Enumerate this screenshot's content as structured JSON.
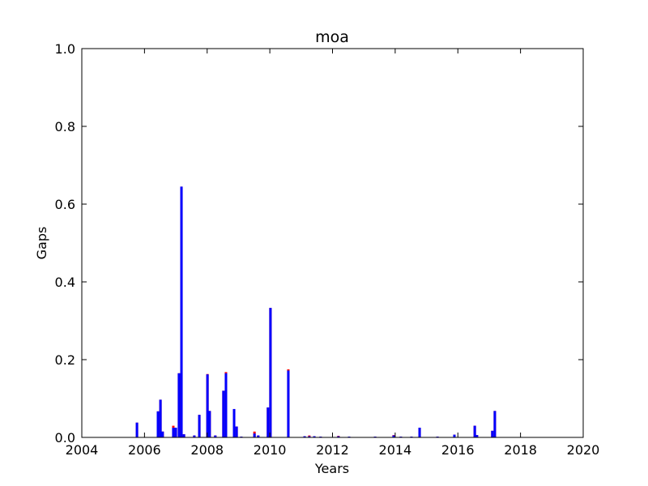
{
  "chart_data": {
    "type": "bar",
    "title": "moa",
    "xlabel": "Years",
    "ylabel": "Gaps",
    "x": [
      2005.76,
      2006.43,
      2006.51,
      2006.58,
      2006.92,
      2007.0,
      2007.1,
      2007.18,
      2007.26,
      2007.59,
      2007.75,
      2008.01,
      2008.08,
      2008.26,
      2008.52,
      2008.6,
      2008.86,
      2008.94,
      2009.09,
      2009.51,
      2009.63,
      2009.94,
      2010.02,
      2010.59,
      2011.11,
      2011.26,
      2011.42,
      2011.62,
      2012.19,
      2012.53,
      2013.36,
      2013.95,
      2014.18,
      2014.52,
      2014.78,
      2015.35,
      2015.89,
      2016.54,
      2016.61,
      2017.1,
      2017.18
    ],
    "series": [
      {
        "color": "#ff0000",
        "values": [
          0.038,
          0.067,
          0.097,
          0.015,
          0.03,
          0.025,
          0.165,
          0.645,
          0.008,
          0.005,
          0.058,
          0.163,
          0.068,
          0.005,
          0.12,
          0.168,
          0.073,
          0.028,
          0.002,
          0.015,
          0.005,
          0.077,
          0.333,
          0.175,
          0.003,
          0.005,
          0.003,
          0.002,
          0.004,
          0.002,
          0.002,
          0.006,
          0.002,
          0.002,
          0.025,
          0.002,
          0.007,
          0.03,
          0.006,
          0.017,
          0.068
        ]
      },
      {
        "color": "#0000ff",
        "values": [
          0.038,
          0.067,
          0.097,
          0.015,
          0.025,
          0.025,
          0.165,
          0.645,
          0.008,
          0.005,
          0.058,
          0.162,
          0.068,
          0.005,
          0.12,
          0.165,
          0.073,
          0.028,
          0.002,
          0.01,
          0.005,
          0.077,
          0.333,
          0.172,
          0.003,
          0.003,
          0.003,
          0.002,
          0.003,
          0.002,
          0.002,
          0.005,
          0.002,
          0.002,
          0.025,
          0.002,
          0.007,
          0.03,
          0.006,
          0.017,
          0.068
        ]
      }
    ],
    "xlim": [
      2004,
      2020
    ],
    "xticks": [
      2004,
      2006,
      2008,
      2010,
      2012,
      2014,
      2016,
      2018,
      2020
    ],
    "ylim": [
      0,
      1
    ],
    "yticks": [
      {
        "value": 0,
        "label": "0.0"
      },
      0.2,
      0.4,
      0.6,
      0.8,
      {
        "value": 1,
        "label": "1.0"
      }
    ]
  }
}
